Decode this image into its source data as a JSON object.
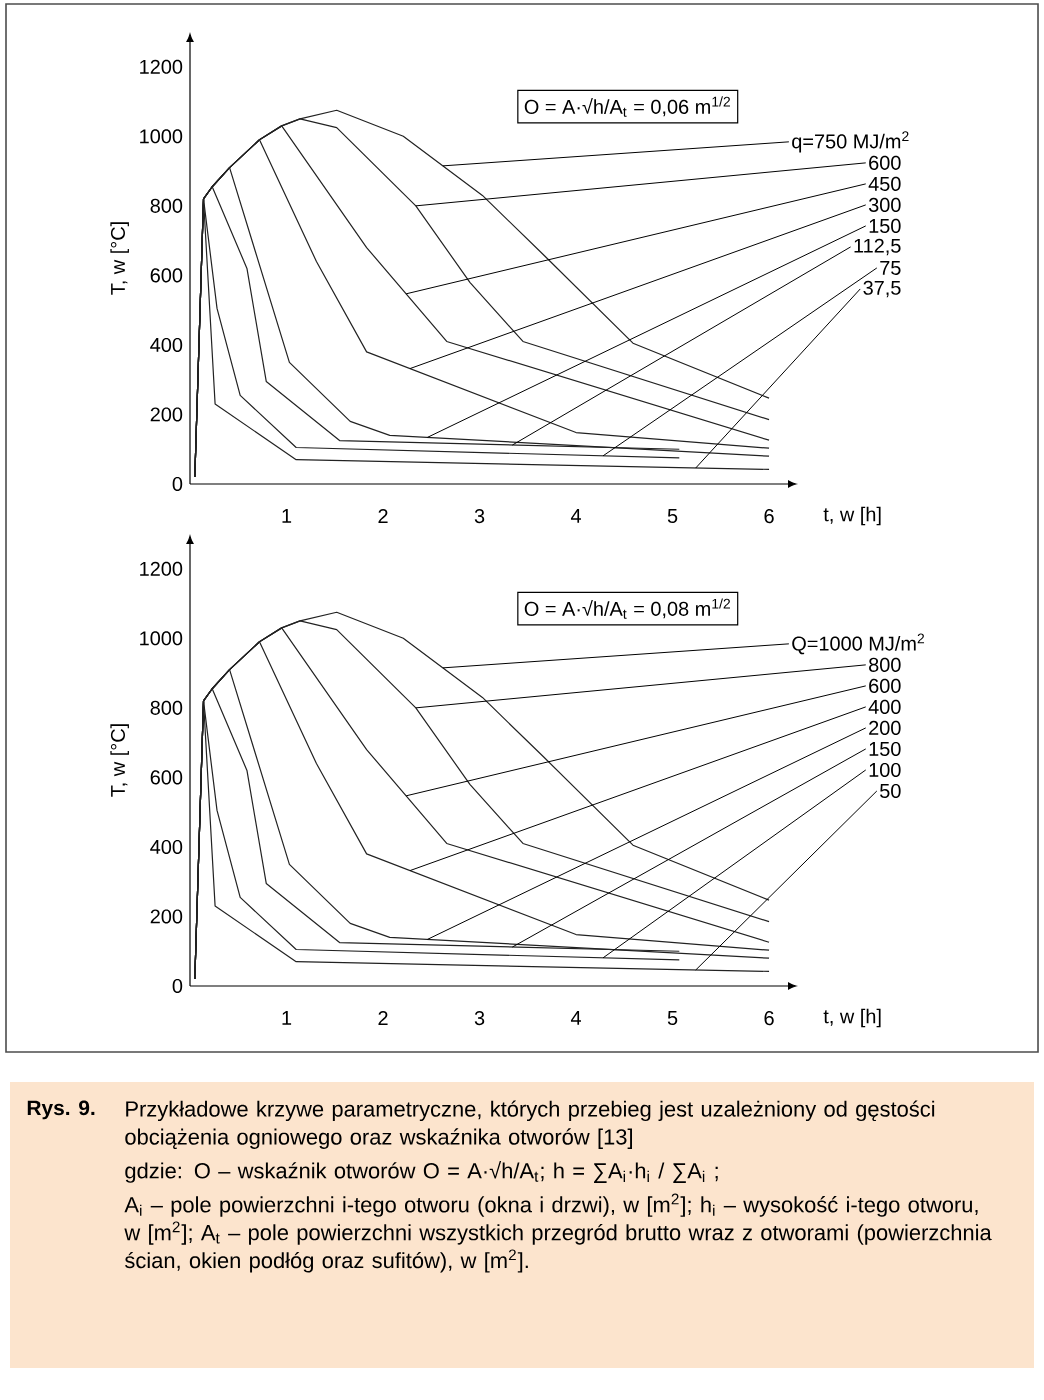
{
  "chart_data": [
    {
      "type": "line",
      "xlabel": "t, w [h]",
      "ylabel": "T, w [°C]",
      "xlim": [
        0,
        6.3
      ],
      "ylim": [
        0,
        1300
      ],
      "xticks": [
        1,
        2,
        3,
        4,
        5,
        6
      ],
      "yticks": [
        0,
        200,
        400,
        600,
        800,
        1000,
        1200
      ],
      "marker": "none",
      "series": [
        {
          "color": "#222222",
          "x": [
            0.05,
            0.14,
            0.23,
            0.41,
            0.72,
            0.95,
            1.14,
            1.52,
            2.21,
            3.03,
            3.66,
            4.59,
            6.0
          ],
          "values": [
            20,
            820,
            855,
            910,
            990,
            1030,
            1050,
            1075,
            1000,
            830,
            660,
            405,
            247
          ]
        },
        {
          "color": "#222222",
          "x": [
            0.05,
            0.14,
            0.23,
            0.41,
            0.72,
            0.95,
            1.14,
            1.52,
            2.34,
            2.9,
            3.45,
            6.0
          ],
          "values": [
            20,
            820,
            855,
            910,
            990,
            1030,
            1050,
            1025,
            800,
            580,
            410,
            185
          ]
        },
        {
          "color": "#222222",
          "x": [
            0.05,
            0.14,
            0.23,
            0.41,
            0.72,
            0.95,
            1.83,
            2.66,
            6.0
          ],
          "values": [
            20,
            820,
            855,
            910,
            990,
            1030,
            680,
            410,
            126
          ]
        },
        {
          "color": "#222222",
          "x": [
            0.05,
            0.14,
            0.23,
            0.41,
            0.72,
            1.31,
            1.83,
            4.0,
            6.0
          ],
          "values": [
            20,
            820,
            855,
            910,
            990,
            640,
            380,
            148,
            103
          ]
        },
        {
          "color": "#222222",
          "x": [
            0.05,
            0.14,
            0.23,
            0.41,
            1.03,
            1.66,
            2.07,
            6.0
          ],
          "values": [
            20,
            820,
            855,
            910,
            350,
            180,
            140,
            80
          ]
        },
        {
          "color": "#222222",
          "x": [
            0.05,
            0.14,
            0.23,
            0.59,
            0.79,
            1.55,
            5.07
          ],
          "values": [
            20,
            820,
            855,
            620,
            295,
            125,
            100
          ]
        },
        {
          "color": "#222222",
          "x": [
            0.05,
            0.14,
            0.28,
            0.52,
            1.1,
            5.07
          ],
          "values": [
            20,
            820,
            505,
            255,
            105,
            75
          ]
        },
        {
          "color": "#222222",
          "x": [
            0.05,
            0.14,
            0.26,
            1.1,
            6.0
          ],
          "values": [
            20,
            820,
            230,
            70,
            42
          ]
        }
      ],
      "annotations": [
        "O = A·√h/A$_{t}$ = 0,06 m$^{1/2}$",
        {
          "text": "q=750 MJ/m$^{2}$",
          "x": 2.62,
          "y": 915
        },
        {
          "text": "600",
          "x": 2.34,
          "y": 800
        },
        {
          "text": "450",
          "x": 2.24,
          "y": 547
        },
        {
          "text": "300",
          "x": 2.28,
          "y": 332
        },
        {
          "text": "150",
          "x": 2.46,
          "y": 134
        },
        {
          "text": "112,5",
          "x": 3.34,
          "y": 112
        },
        {
          "text": "75",
          "x": 4.28,
          "y": 81
        },
        {
          "text": "37,5",
          "x": 5.24,
          "y": 46
        }
      ]
    },
    {
      "type": "line",
      "xlabel": "t, w [h]",
      "ylabel": "T, w [°C]",
      "xlim": [
        0,
        6.3
      ],
      "ylim": [
        0,
        1300
      ],
      "xticks": [
        1,
        2,
        3,
        4,
        5,
        6
      ],
      "yticks": [
        0,
        200,
        400,
        600,
        800,
        1000,
        1200
      ],
      "marker": "none",
      "series": [
        {
          "color": "#222222",
          "x": [
            0.05,
            0.14,
            0.23,
            0.41,
            0.72,
            0.95,
            1.14,
            1.52,
            2.21,
            3.03,
            3.66,
            4.59,
            6.0
          ],
          "values": [
            20,
            820,
            855,
            910,
            990,
            1030,
            1050,
            1075,
            1000,
            830,
            660,
            405,
            247
          ]
        },
        {
          "color": "#222222",
          "x": [
            0.05,
            0.14,
            0.23,
            0.41,
            0.72,
            0.95,
            1.14,
            1.52,
            2.34,
            2.9,
            3.45,
            6.0
          ],
          "values": [
            20,
            820,
            855,
            910,
            990,
            1030,
            1050,
            1025,
            800,
            580,
            410,
            185
          ]
        },
        {
          "color": "#222222",
          "x": [
            0.05,
            0.14,
            0.23,
            0.41,
            0.72,
            0.95,
            1.83,
            2.66,
            6.0
          ],
          "values": [
            20,
            820,
            855,
            910,
            990,
            1030,
            680,
            410,
            126
          ]
        },
        {
          "color": "#222222",
          "x": [
            0.05,
            0.14,
            0.23,
            0.41,
            0.72,
            1.31,
            1.83,
            4.0,
            6.0
          ],
          "values": [
            20,
            820,
            855,
            910,
            990,
            640,
            380,
            148,
            103
          ]
        },
        {
          "color": "#222222",
          "x": [
            0.05,
            0.14,
            0.23,
            0.41,
            1.03,
            1.66,
            2.07,
            6.0
          ],
          "values": [
            20,
            820,
            855,
            910,
            350,
            180,
            140,
            80
          ]
        },
        {
          "color": "#222222",
          "x": [
            0.05,
            0.14,
            0.23,
            0.59,
            0.79,
            1.55,
            5.07
          ],
          "values": [
            20,
            820,
            855,
            620,
            295,
            125,
            100
          ]
        },
        {
          "color": "#222222",
          "x": [
            0.05,
            0.14,
            0.28,
            0.52,
            1.1,
            5.07
          ],
          "values": [
            20,
            820,
            505,
            255,
            105,
            75
          ]
        },
        {
          "color": "#222222",
          "x": [
            0.05,
            0.14,
            0.26,
            1.1,
            6.0
          ],
          "values": [
            20,
            820,
            230,
            70,
            42
          ]
        }
      ],
      "annotations": [
        "O = A·√h/A$_{t}$ = 0,08 m$^{1/2}$",
        {
          "text": "Q=1000 MJ/m$^{2}$",
          "x": 2.62,
          "y": 915
        },
        {
          "text": "800",
          "x": 2.34,
          "y": 800
        },
        {
          "text": "600",
          "x": 2.24,
          "y": 547
        },
        {
          "text": "400",
          "x": 2.28,
          "y": 332
        },
        {
          "text": "200",
          "x": 2.46,
          "y": 134
        },
        {
          "text": "150",
          "x": 3.34,
          "y": 112
        },
        {
          "text": "100",
          "x": 4.28,
          "y": 81
        },
        {
          "text": "50",
          "x": 5.24,
          "y": 46
        },
        "Rys. 9.",
        "Przykładowe krzywe parametryczne, których przebieg jest uzależniony od gęstości obciążenia ogniowego oraz wskaźnika otworów [13]",
        "gdzie: O – wskaźnik otworów  O = A·√h/A$_{t}$;  h = ∑A$_{i}$·h$_{i}$ / ∑A$_{i}$ ;",
        "A$_{i}$ – pole powierzchni i-tego otworu (okna i drzwi), w [m$^{2}$]; h$_{i}$ – wysokość i-tego otworu, w [m$^{2}$]; A$_{t}$ – pole powierzchni wszystkich przegród brutto wraz z otworami (powierzchnia ścian, okien podłóg oraz sufitów), w [m$^{2}$]."
      ]
    }
  ]
}
